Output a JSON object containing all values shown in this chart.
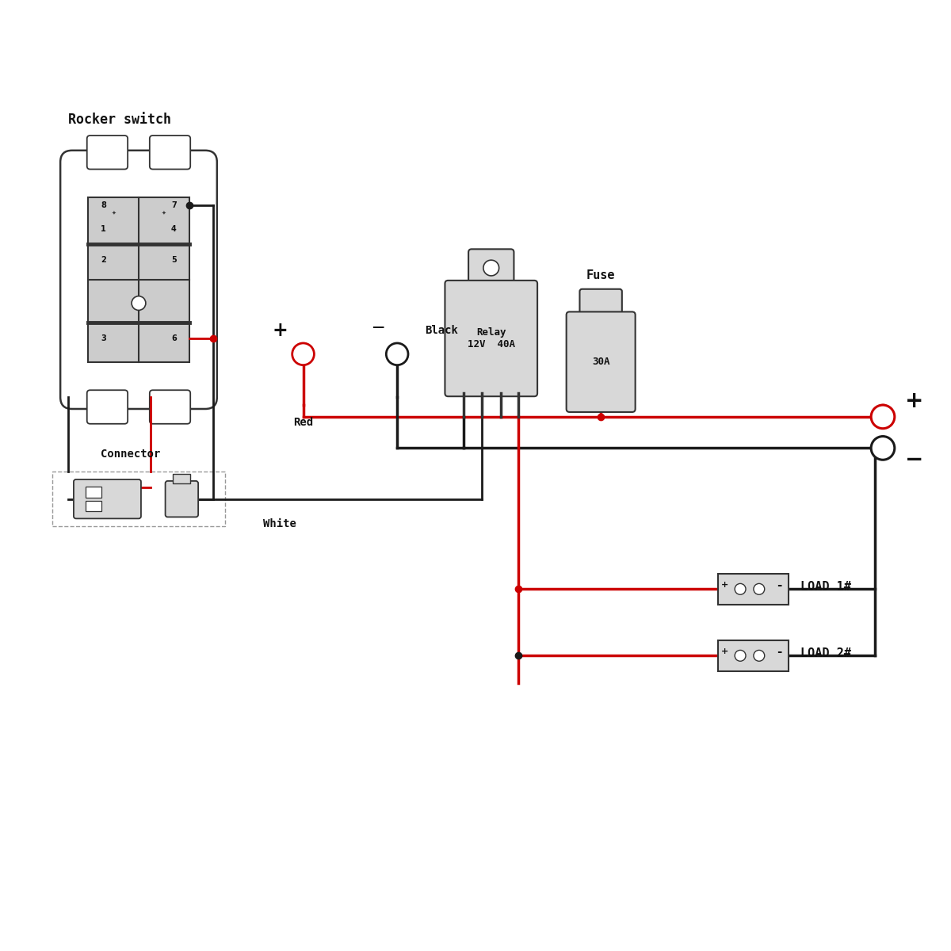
{
  "bg_color": "#ffffff",
  "wire_red": "#cc0000",
  "wire_black": "#1a1a1a",
  "comp_fill": "#d8d8d8",
  "comp_edge": "#333333",
  "text_color": "#111111",
  "label_rocker": "Rocker switch",
  "label_connector": "Connector",
  "label_white": "White",
  "label_relay": "Relay\n12V  40A",
  "label_fuse": "Fuse",
  "label_fuse_rating": "30A",
  "label_load1": "LOAD 1#",
  "label_load2": "LOAD 2#",
  "label_red": "Red",
  "label_black": "Black",
  "label_plus": "+",
  "label_minus": "−"
}
